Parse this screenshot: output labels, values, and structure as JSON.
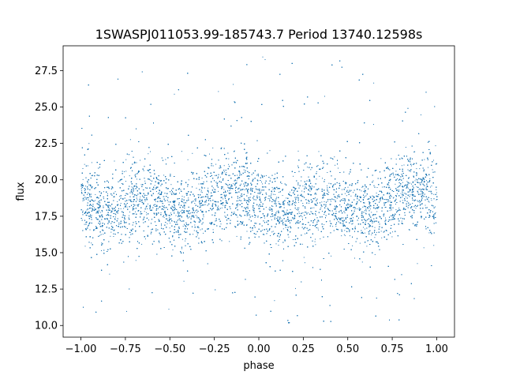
{
  "chart_data": {
    "type": "scatter",
    "title": "1SWASPJ011053.99-185743.7 Period 13740.12598s",
    "xlabel": "phase",
    "ylabel": "flux",
    "xlim": [
      -1.1,
      1.1
    ],
    "ylim": [
      9.2,
      29.2
    ],
    "xticks": [
      -1.0,
      -0.75,
      -0.5,
      -0.25,
      0.0,
      0.25,
      0.5,
      0.75,
      1.0
    ],
    "xtick_labels": [
      "−1.00",
      "−0.75",
      "−0.50",
      "−0.25",
      "0.00",
      "0.25",
      "0.50",
      "0.75",
      "1.00"
    ],
    "yticks": [
      10.0,
      12.5,
      15.0,
      17.5,
      20.0,
      22.5,
      25.0,
      27.5
    ],
    "ytick_labels": [
      "10.0",
      "12.5",
      "15.0",
      "17.5",
      "20.0",
      "22.5",
      "25.0",
      "27.5"
    ],
    "grid": false,
    "marker_color": "#1f77b4",
    "series": [
      {
        "phase_range": [
          -1.0,
          1.0
        ],
        "flux_range": [
          10.0,
          28.5
        ],
        "shape": "double-humped light curve, core band about 16.5–20.5 flux, spread ±2 with sparse outliers",
        "n_points_drawn": 16000
      }
    ]
  }
}
